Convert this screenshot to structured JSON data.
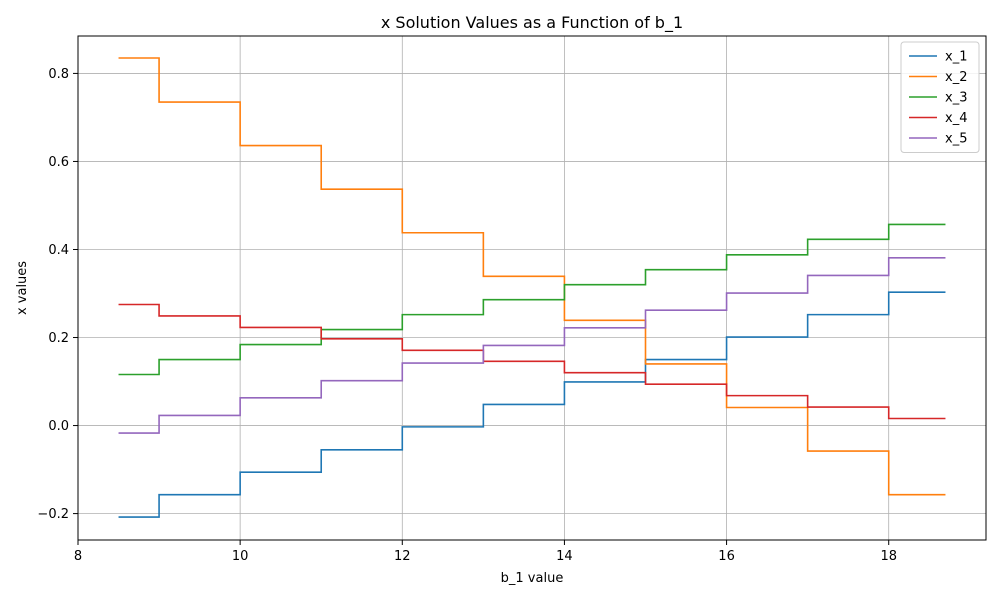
{
  "chart_data": {
    "type": "line",
    "step": true,
    "title": "x Solution Values as a Function of b_1",
    "xlabel": "b_1 value",
    "ylabel": "x values",
    "xlim": [
      8,
      19.2
    ],
    "ylim": [
      -0.26,
      0.885
    ],
    "xticks": [
      8,
      10,
      12,
      14,
      16,
      18
    ],
    "yticks": [
      -0.2,
      0.0,
      0.2,
      0.4,
      0.6,
      0.8
    ],
    "ytick_labels": [
      "−0.2",
      "0.0",
      "0.2",
      "0.4",
      "0.6",
      "0.8"
    ],
    "grid": true,
    "legend_position": "top-right",
    "x": [
      8.5,
      9,
      10,
      11,
      12,
      13,
      14,
      15,
      16,
      17,
      18,
      18.7
    ],
    "series": [
      {
        "name": "x_1",
        "color": "#1f77b4",
        "values": [
          -0.208,
          -0.157,
          -0.106,
          -0.055,
          -0.003,
          0.048,
          0.099,
          0.15,
          0.201,
          0.252,
          0.303,
          0.303
        ]
      },
      {
        "name": "x_2",
        "color": "#ff7f0e",
        "values": [
          0.835,
          0.735,
          0.636,
          0.537,
          0.438,
          0.339,
          0.239,
          0.14,
          0.041,
          -0.058,
          -0.157,
          -0.157
        ]
      },
      {
        "name": "x_3",
        "color": "#2ca02c",
        "values": [
          0.116,
          0.15,
          0.184,
          0.218,
          0.252,
          0.286,
          0.32,
          0.354,
          0.388,
          0.423,
          0.457,
          0.457
        ]
      },
      {
        "name": "x_4",
        "color": "#d62728",
        "values": [
          0.275,
          0.249,
          0.223,
          0.197,
          0.171,
          0.146,
          0.12,
          0.094,
          0.068,
          0.042,
          0.016,
          0.016
        ]
      },
      {
        "name": "x_5",
        "color": "#9467bd",
        "values": [
          -0.017,
          0.023,
          0.063,
          0.102,
          0.142,
          0.182,
          0.222,
          0.262,
          0.301,
          0.341,
          0.381,
          0.381
        ]
      }
    ]
  }
}
